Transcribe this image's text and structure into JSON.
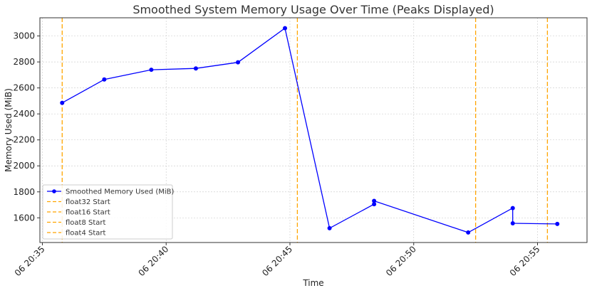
{
  "chart_data": {
    "type": "line",
    "title": "Smoothed System Memory Usage Over Time (Peaks Displayed)",
    "xlabel": "Time",
    "ylabel": "Memory Used (MiB)",
    "x_ticks": [
      "06 20:35",
      "06 20:40",
      "06 20:45",
      "06 20:50",
      "06 20:55"
    ],
    "y_ticks": [
      1600,
      1800,
      2000,
      2200,
      2400,
      2600,
      2800,
      3000
    ],
    "xlim": [
      "20:34.9",
      "20:57.0"
    ],
    "ylim": [
      1410,
      3140
    ],
    "grid": true,
    "legend_position": "lower-left",
    "series": [
      {
        "name": "Smoothed Memory Used (MiB)",
        "color": "#0000ff",
        "points": [
          {
            "x": "20:35.8",
            "y": 2485
          },
          {
            "x": "20:37.5",
            "y": 2665
          },
          {
            "x": "20:39.4",
            "y": 2740
          },
          {
            "x": "20:41.2",
            "y": 2750
          },
          {
            "x": "20:42.9",
            "y": 2797
          },
          {
            "x": "20:44.8",
            "y": 3060
          },
          {
            "x": "20:46.6",
            "y": 1520
          },
          {
            "x": "20:48.4",
            "y": 1705
          },
          {
            "x": "20:48.4",
            "y": 1730
          },
          {
            "x": "20:52.2",
            "y": 1487
          },
          {
            "x": "20:54.0",
            "y": 1675
          },
          {
            "x": "20:54.0",
            "y": 1558
          },
          {
            "x": "20:55.8",
            "y": 1553
          }
        ]
      }
    ],
    "vlines": [
      {
        "name": "float32 Start",
        "x": "20:35.8",
        "color": "#ffa500"
      },
      {
        "name": "float16 Start",
        "x": "20:45.3",
        "color": "#ffa500"
      },
      {
        "name": "float8 Start",
        "x": "20:52.5",
        "color": "#ffa500"
      },
      {
        "name": "float4 Start",
        "x": "20:55.4",
        "color": "#ffa500"
      }
    ]
  }
}
